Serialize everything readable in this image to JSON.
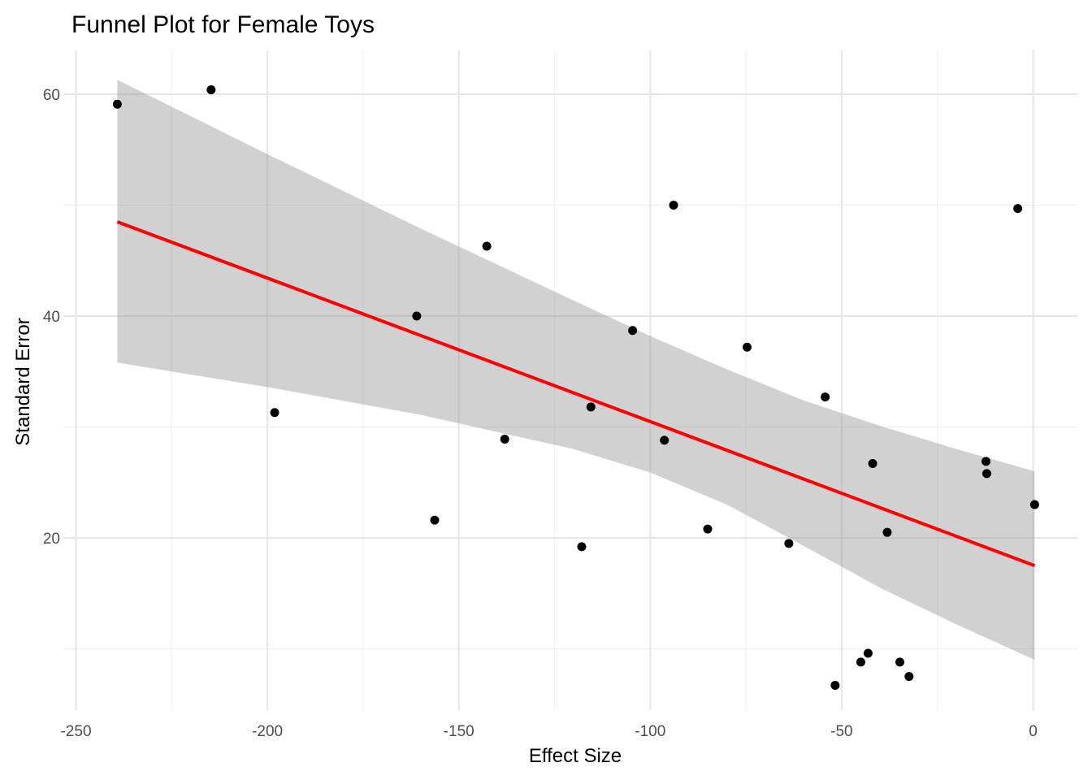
{
  "chart_data": {
    "type": "scatter",
    "title": "Funnel Plot for Female Toys",
    "xlabel": "Effect Size",
    "ylabel": "Standard Error",
    "xlim": [
      -250,
      0
    ],
    "ylim": [
      5,
      65
    ],
    "x_ticks": [
      -250,
      -200,
      -150,
      -100,
      -50,
      0
    ],
    "x_tick_labels": [
      "-250",
      "-200",
      "-150",
      "-100",
      "-50",
      "0"
    ],
    "y_ticks": [
      20,
      40,
      60
    ],
    "y_tick_labels": [
      "20",
      "40",
      "60"
    ],
    "grid": true,
    "legend": "none",
    "colors": {
      "points": "#000000",
      "fit_line": "#ff0000",
      "confidence_band": "#999999"
    },
    "points": [
      {
        "x": -239.2,
        "y": 59.1
      },
      {
        "x": -214.7,
        "y": 60.4
      },
      {
        "x": -198.1,
        "y": 31.3
      },
      {
        "x": -161.0,
        "y": 40.0
      },
      {
        "x": -156.3,
        "y": 21.6
      },
      {
        "x": -142.7,
        "y": 46.3
      },
      {
        "x": -138.0,
        "y": 28.9
      },
      {
        "x": -117.9,
        "y": 19.2
      },
      {
        "x": -115.5,
        "y": 31.8
      },
      {
        "x": -104.6,
        "y": 38.7
      },
      {
        "x": -96.3,
        "y": 28.8
      },
      {
        "x": -93.9,
        "y": 50.0
      },
      {
        "x": -85.0,
        "y": 20.8
      },
      {
        "x": -74.7,
        "y": 37.2
      },
      {
        "x": -63.8,
        "y": 19.5
      },
      {
        "x": -54.3,
        "y": 32.7
      },
      {
        "x": -51.7,
        "y": 6.7
      },
      {
        "x": -45.0,
        "y": 8.8
      },
      {
        "x": -43.1,
        "y": 9.6
      },
      {
        "x": -41.9,
        "y": 26.7
      },
      {
        "x": -38.1,
        "y": 20.5
      },
      {
        "x": -34.8,
        "y": 8.8
      },
      {
        "x": -32.4,
        "y": 7.5
      },
      {
        "x": -12.3,
        "y": 26.9
      },
      {
        "x": -12.1,
        "y": 25.8
      },
      {
        "x": -4.0,
        "y": 49.7
      },
      {
        "x": 0.4,
        "y": 23.0
      }
    ],
    "fit_line": {
      "x": [
        -239.2,
        0.4
      ],
      "y": [
        48.5,
        17.5
      ]
    },
    "confidence_band": {
      "x": [
        -239.2,
        -200,
        -160,
        -120,
        -100,
        -80,
        -60,
        -40,
        -20,
        0.4
      ],
      "upper": [
        61.3,
        54.6,
        47.9,
        41.4,
        38.2,
        35.2,
        32.4,
        30.1,
        28.0,
        26.0
      ],
      "lower": [
        35.8,
        33.6,
        31.1,
        28.0,
        25.9,
        23.0,
        19.3,
        15.5,
        12.2,
        9.0
      ]
    }
  }
}
